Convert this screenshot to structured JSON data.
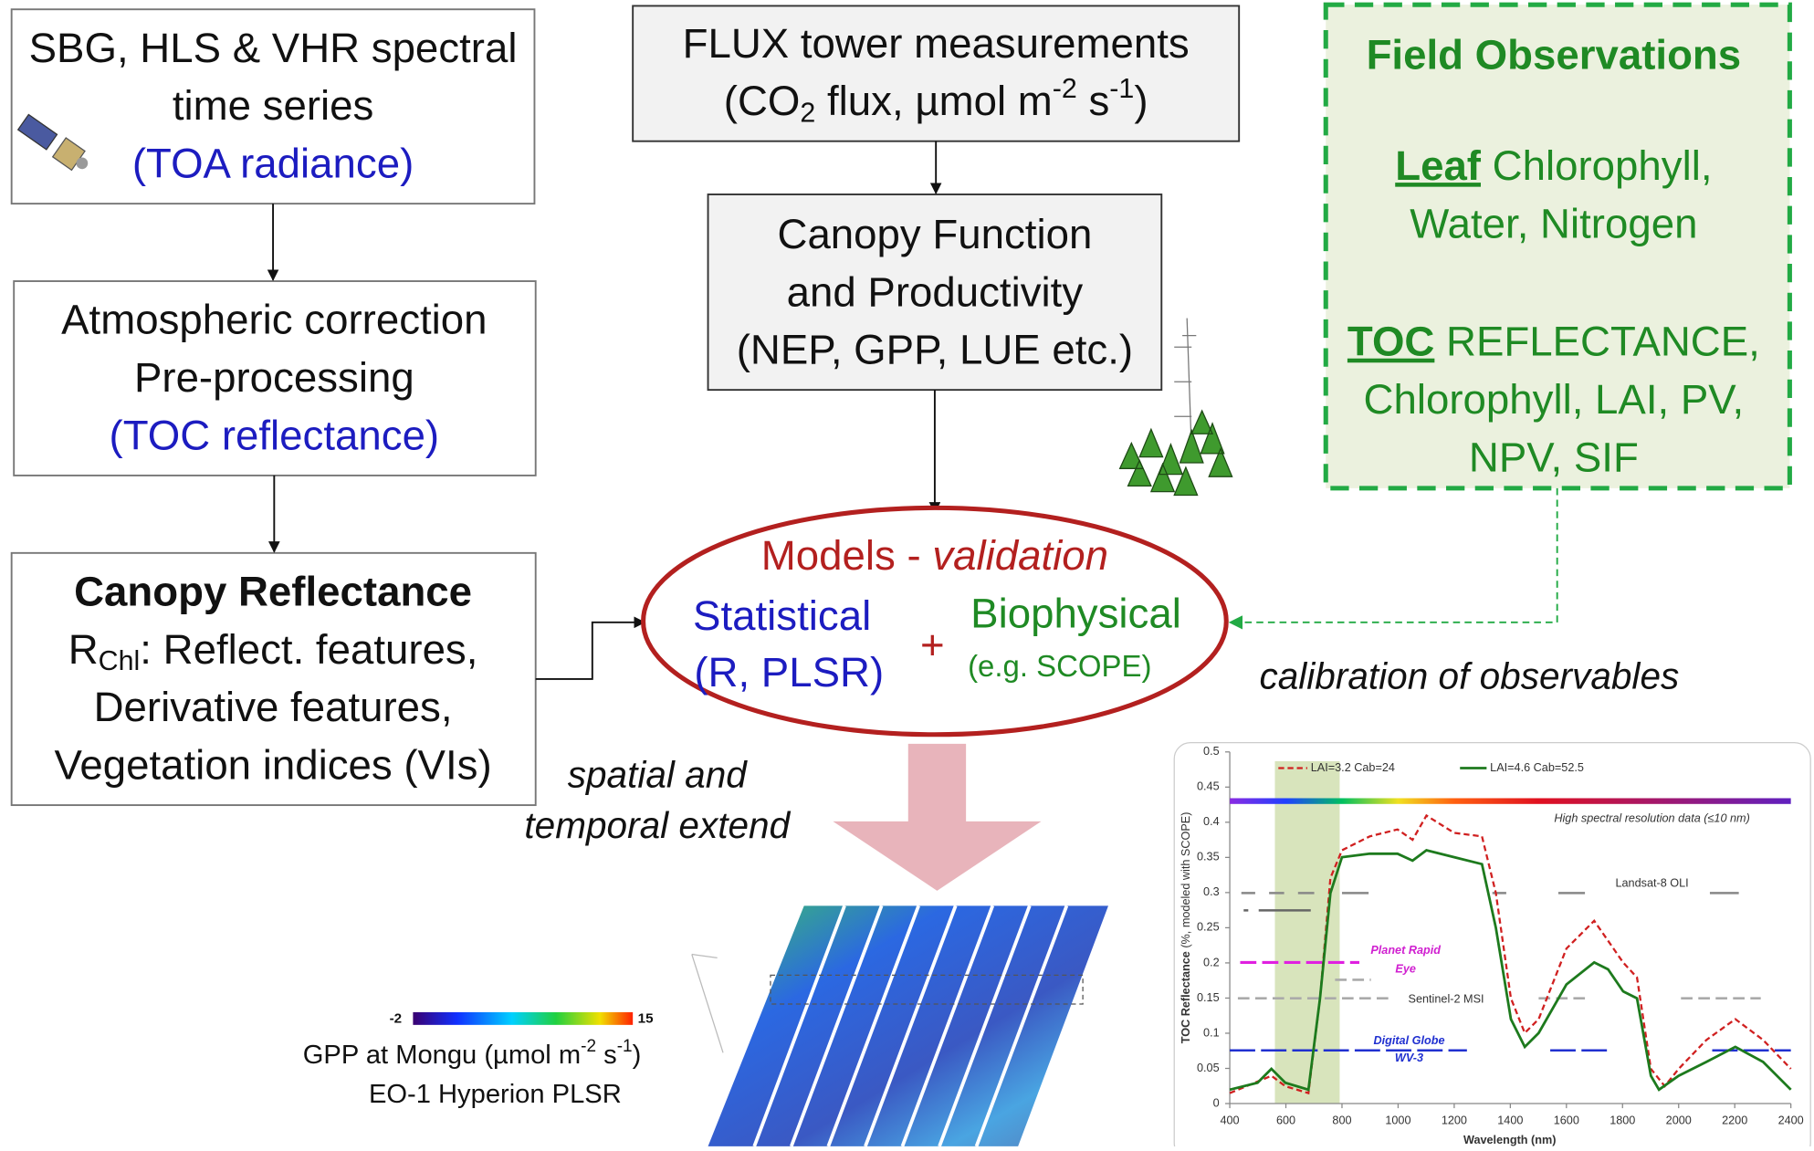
{
  "sensor": {
    "lines": [
      "SBG, HLS & VHR spectral",
      "time series"
    ],
    "product": "(TOA radiance)"
  },
  "atmospheric": {
    "lines": [
      "Atmospheric correction",
      "Pre-processing"
    ],
    "product": "(TOC reflectance)"
  },
  "canopy_reflectance": {
    "title": "Canopy Reflectance",
    "first_line": [
      "R",
      "Chl",
      ": Reflect. features,"
    ],
    "lines": [
      "Derivative features,",
      "Vegetation indices (VIs)"
    ]
  },
  "flux": {
    "title": "FLUX tower measurements",
    "unit": [
      "(CO",
      "2",
      " flux, µmol m",
      "-2",
      " s",
      "-1",
      ")"
    ]
  },
  "canopy_function": {
    "lines": [
      "Canopy Function",
      "and Productivity",
      "(NEP, GPP, LUE etc.)"
    ]
  },
  "field": {
    "title": "Field Observations",
    "leaf": [
      "Leaf",
      " Chlorophyll,"
    ],
    "leaf_line2": "Water, Nitrogen",
    "toc": [
      "TOC",
      " REFLECTANCE,"
    ],
    "toc_lines": [
      "Chlorophyll, LAI, PV,",
      "NPV, SIF"
    ]
  },
  "models": {
    "title": [
      "Models - ",
      "validation"
    ],
    "statistical": [
      "Statistical",
      "(R, PLSR)"
    ],
    "plus": "+",
    "biophysical": [
      "Biophysical",
      "(e.g. SCOPE)"
    ]
  },
  "labels": {
    "calibration": "calibration of observables",
    "extend": [
      "spatial and",
      "temporal extend"
    ]
  },
  "map": {
    "colorbar_min": "-2",
    "colorbar_max": "15",
    "caption": [
      "GPP at Mongu (µmol m",
      "-2",
      " s",
      "-1",
      ")"
    ],
    "method": "EO-1 Hyperion PLSR"
  },
  "spectra": {
    "y_label": [
      "TOC Reflectance",
      " (%, modeled with SCOPE)"
    ],
    "x_label": "Wavelength (nm)",
    "xticks": [
      "400",
      "600",
      "800",
      "1000",
      "1200",
      "1400",
      "1600",
      "1800",
      "2000",
      "2200",
      "2400"
    ],
    "yticks": [
      "0",
      "0.05",
      "0.1",
      "0.15",
      "0.2",
      "0.25",
      "0.3",
      "0.35",
      "0.4",
      "0.45",
      "0.5"
    ],
    "legend": [
      "LAI=3.2 Cab=24",
      "LAI=4.6 Cab=52.5"
    ],
    "annotations": {
      "high_res": "High spectral resolution data  (≤10 nm)",
      "landsat": "Landsat-8 OLI",
      "planet": [
        "Planet Rapid",
        "Eye"
      ],
      "sentinel": "Sentinel-2 MSI",
      "digital_globe": [
        "Digital Globe",
        "WV-3"
      ]
    }
  }
}
